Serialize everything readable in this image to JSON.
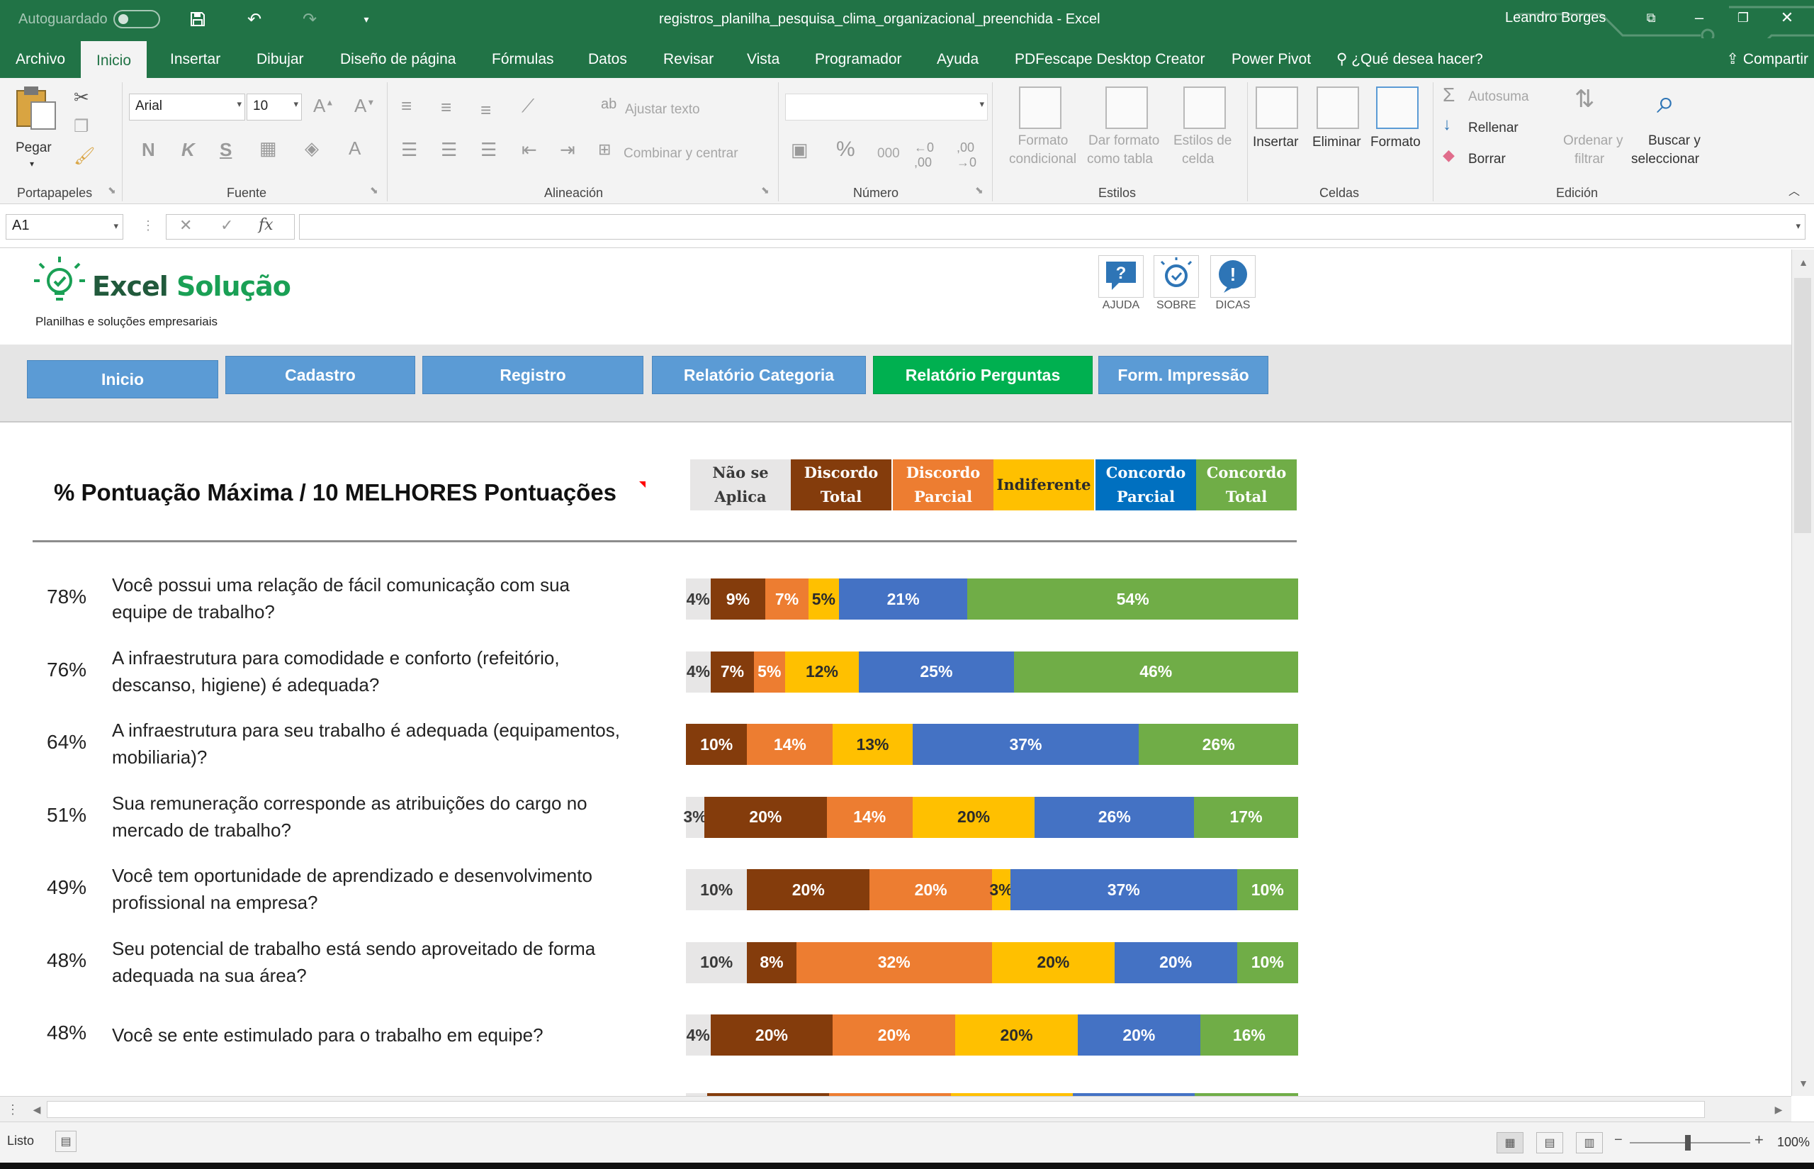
{
  "titlebar": {
    "autosave_label": "Autoguardado",
    "document_title": "registros_planilha_pesquisa_clima_organizacional_preenchida  -  Excel",
    "user_name": "Leandro Borges"
  },
  "ribbon_tabs": [
    "Archivo",
    "Inicio",
    "Insertar",
    "Dibujar",
    "Diseño de página",
    "Fórmulas",
    "Datos",
    "Revisar",
    "Vista",
    "Programador",
    "Ayuda",
    "PDFescape Desktop Creator",
    "Power Pivot"
  ],
  "search_tab": "¿Qué desea hacer?",
  "share_label": "Compartir",
  "ribbon": {
    "clipboard": {
      "paste": "Pegar",
      "group": "Portapapeles"
    },
    "font": {
      "name": "Arial",
      "size": "10",
      "bold": "N",
      "italic": "K",
      "underline": "S",
      "group": "Fuente"
    },
    "alignment": {
      "wrap": "Ajustar texto",
      "merge": "Combinar y centrar",
      "group": "Alineación"
    },
    "number": {
      "percent": "%",
      "thousands": "000",
      "group": "Número"
    },
    "styles": {
      "conditional_1": "Formato",
      "conditional_2": "condicional",
      "as_table_1": "Dar formato",
      "as_table_2": "como tabla",
      "cell_styles_1": "Estilos de",
      "cell_styles_2": "celda",
      "group": "Estilos"
    },
    "cells": {
      "insert": "Insertar",
      "delete": "Eliminar",
      "format": "Formato",
      "group": "Celdas"
    },
    "editing": {
      "autosum": "Autosuma",
      "fill": "Rellenar",
      "clear": "Borrar",
      "sort_1": "Ordenar y",
      "sort_2": "filtrar",
      "find_1": "Buscar y",
      "find_2": "seleccionar",
      "group": "Edición"
    }
  },
  "formula_bar": {
    "name_box": "A1",
    "fx": "fx"
  },
  "brand": {
    "name_1": "Excel ",
    "name_2": "Solução",
    "tagline": "Planilhas e soluções empresariais"
  },
  "help_buttons": [
    "AJUDA",
    "SOBRE",
    "DICAS"
  ],
  "nav": [
    "Inicio",
    "Cadastro",
    "Registro",
    "Relatório Categoria",
    "Relatório Perguntas",
    "Form. Impressão"
  ],
  "report_title": "% Pontuação Máxima / 10 MELHORES Pontuações",
  "legend": [
    {
      "l1": "Não se",
      "l2": "Aplica",
      "bg": "#e7e6e6",
      "fg": "#3a3a3a"
    },
    {
      "l1": "Discordo",
      "l2": "Total",
      "bg": "#843c0c",
      "fg": "#ffffff"
    },
    {
      "l1": "Discordo",
      "l2": "Parcial",
      "bg": "#ed7d31",
      "fg": "#ffffff"
    },
    {
      "l1": "Indiferente",
      "l2": "",
      "bg": "#ffc000",
      "fg": "#2b2b2b"
    },
    {
      "l1": "Concordo",
      "l2": "Parcial",
      "bg": "#0070c0",
      "fg": "#ffffff"
    },
    {
      "l1": "Concordo",
      "l2": "Total",
      "bg": "#70ad47",
      "fg": "#ffffff"
    }
  ],
  "rows": [
    {
      "score": "78%",
      "question": "Você possui uma relação de fácil comunicação com sua equipe de trabalho?",
      "values": [
        4,
        9,
        7,
        5,
        21,
        54
      ]
    },
    {
      "score": "76%",
      "question": "A infraestrutura para comodidade e conforto (refeitório, descanso, higiene) é adequada?",
      "values": [
        4,
        7,
        5,
        12,
        25,
        46
      ]
    },
    {
      "score": "64%",
      "question": "A infraestrutura para seu trabalho é adequada (equipamentos, mobiliaria)?",
      "values": [
        0,
        10,
        14,
        13,
        37,
        26
      ]
    },
    {
      "score": "51%",
      "question": "Sua remuneração corresponde as atribuições do cargo no mercado de trabalho?",
      "values": [
        3,
        20,
        14,
        20,
        26,
        17
      ]
    },
    {
      "score": "49%",
      "question": "Você tem oportunidade de aprendizado e desenvolvimento profissional na empresa?",
      "values": [
        10,
        20,
        20,
        3,
        37,
        10
      ]
    },
    {
      "score": "48%",
      "question": "Seu potencial de trabalho está sendo aproveitado de forma adequada na sua área?",
      "values": [
        10,
        8,
        32,
        20,
        20,
        10
      ]
    },
    {
      "score": "48%",
      "question": "Você se ente estimulado para o trabalho em equipe?",
      "values": [
        4,
        20,
        20,
        20,
        20,
        16
      ]
    }
  ],
  "segment_colors": [
    "#e7e6e6",
    "#843c0c",
    "#ed7d31",
    "#ffc000",
    "#4472c4",
    "#70ad47"
  ],
  "segment_text_colors": [
    "#3a3a3a",
    "#ffffff",
    "#ffffff",
    "#2b2b2b",
    "#ffffff",
    "#ffffff"
  ],
  "status": {
    "ready": "Listo",
    "zoom": "100%"
  }
}
